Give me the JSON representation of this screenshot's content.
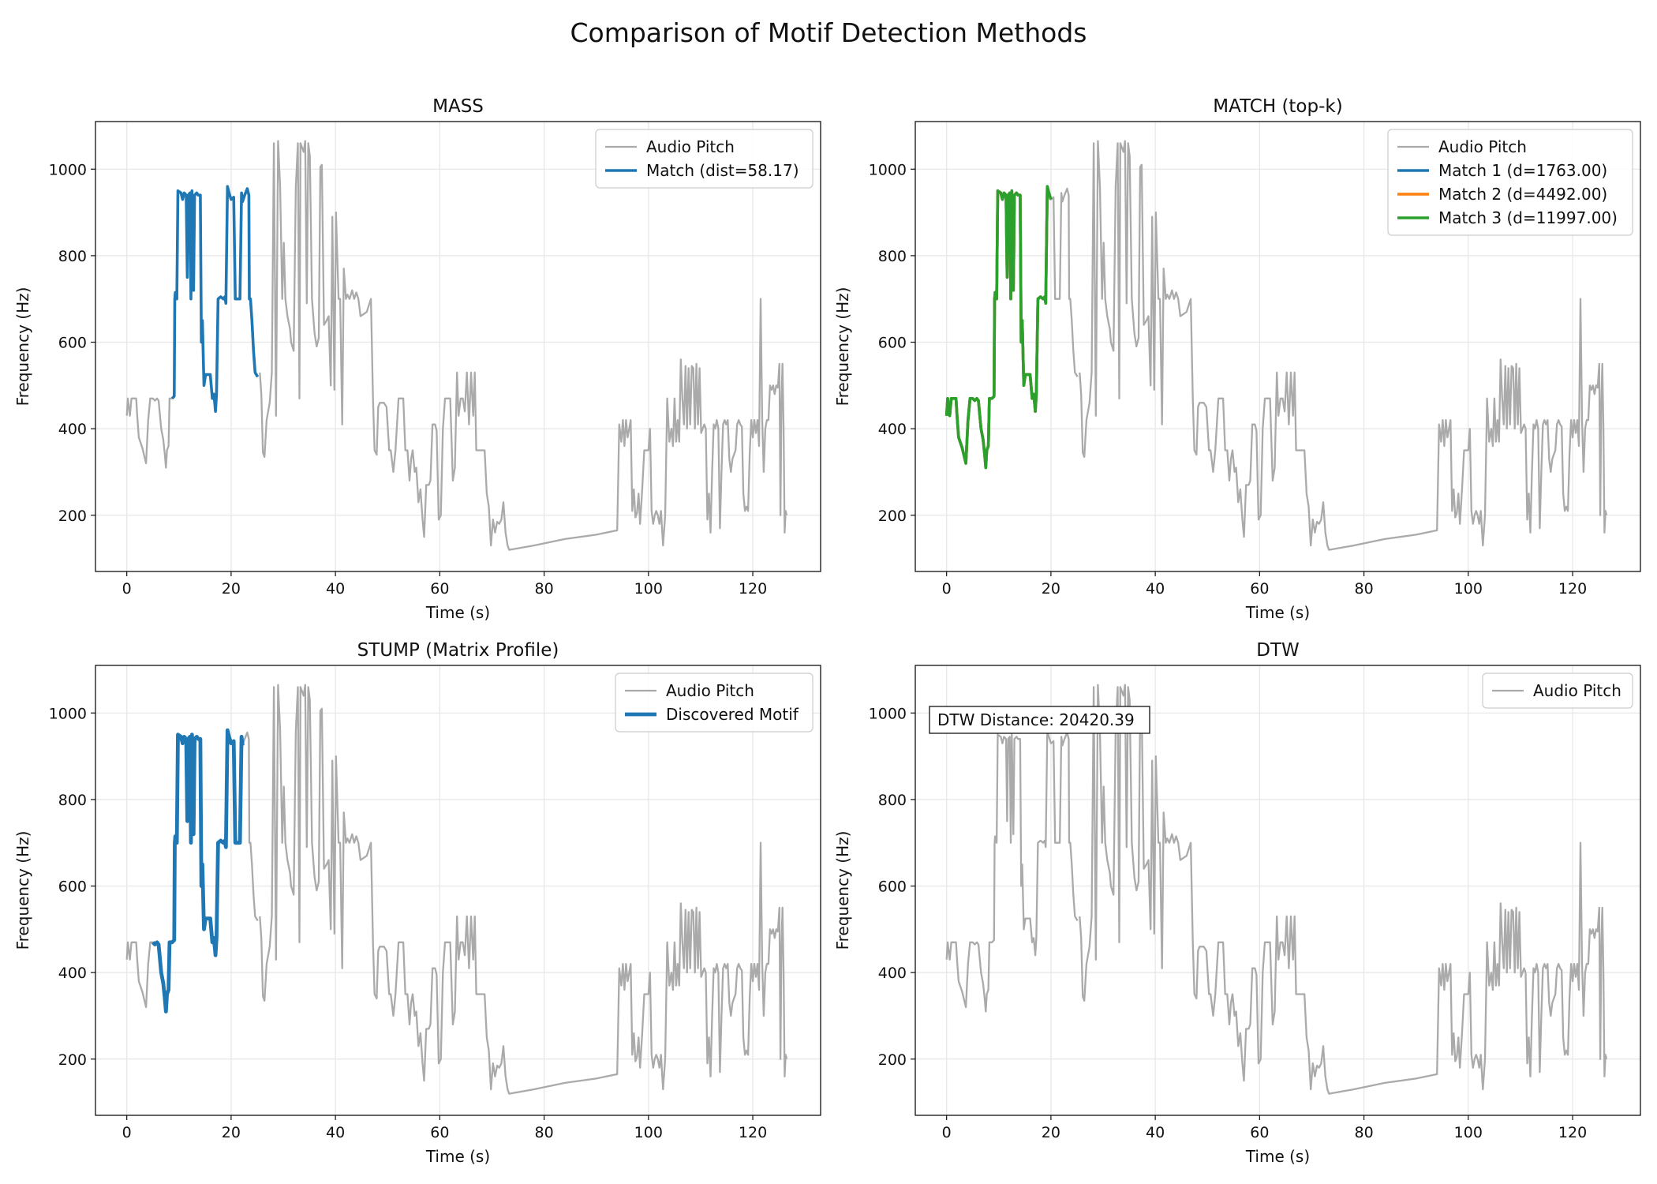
{
  "figure": {
    "title": "Comparison of Motif Detection Methods"
  },
  "colors": {
    "base": "#aaaaaa",
    "blue": "#1f77b4",
    "orange": "#ff7f0e",
    "green": "#2ca02c",
    "grid": "#e6e6e6"
  },
  "pitch_segments": [
    [
      [
        0.0,
        430
      ],
      [
        0.2,
        470
      ],
      [
        0.6,
        430
      ],
      [
        0.9,
        470
      ],
      [
        1.4,
        470
      ],
      [
        1.8,
        470
      ],
      [
        2.0,
        430
      ],
      [
        2.3,
        380
      ],
      [
        3.0,
        355
      ],
      [
        3.7,
        320
      ],
      [
        4.1,
        420
      ],
      [
        4.5,
        470
      ],
      [
        5.0,
        470
      ],
      [
        5.4,
        465
      ],
      [
        5.8,
        470
      ],
      [
        6.1,
        465
      ],
      [
        6.6,
        400
      ],
      [
        7.0,
        375
      ],
      [
        7.3,
        340
      ],
      [
        7.5,
        310
      ],
      [
        7.7,
        350
      ],
      [
        8.0,
        360
      ],
      [
        8.2,
        470
      ],
      [
        8.7,
        470
      ],
      [
        9.1,
        475
      ],
      [
        9.2,
        700
      ],
      [
        9.3,
        715
      ],
      [
        9.6,
        700
      ],
      [
        9.8,
        950
      ],
      [
        10.4,
        945
      ],
      [
        10.7,
        930
      ],
      [
        11.0,
        945
      ],
      [
        11.4,
        940
      ],
      [
        11.6,
        750
      ],
      [
        11.8,
        940
      ],
      [
        12.1,
        945
      ],
      [
        12.3,
        700
      ],
      [
        12.5,
        950
      ],
      [
        12.8,
        720
      ],
      [
        13.0,
        940
      ],
      [
        13.4,
        945
      ],
      [
        13.7,
        940
      ],
      [
        14.1,
        940
      ],
      [
        14.3,
        600
      ],
      [
        14.5,
        650
      ],
      [
        14.8,
        500
      ],
      [
        15.1,
        525
      ],
      [
        15.5,
        525
      ],
      [
        16.0,
        525
      ],
      [
        16.4,
        470
      ],
      [
        16.7,
        480
      ],
      [
        17.0,
        440
      ],
      [
        17.2,
        480
      ],
      [
        17.5,
        700
      ],
      [
        18.0,
        705
      ],
      [
        18.5,
        700
      ],
      [
        18.8,
        705
      ],
      [
        19.0,
        690
      ],
      [
        19.3,
        960
      ],
      [
        19.6,
        945
      ],
      [
        20.0,
        930
      ],
      [
        20.5,
        935
      ],
      [
        20.8,
        700
      ],
      [
        21.0,
        700
      ],
      [
        21.3,
        700
      ],
      [
        21.7,
        700
      ],
      [
        22.0,
        945
      ],
      [
        22.2,
        925
      ],
      [
        22.6,
        940
      ],
      [
        23.1,
        955
      ],
      [
        23.4,
        940
      ],
      [
        23.5,
        700
      ],
      [
        23.7,
        700
      ],
      [
        24.0,
        650
      ],
      [
        24.3,
        580
      ],
      [
        24.6,
        530
      ],
      [
        25.1,
        520
      ]
    ],
    [
      [
        25.5,
        530
      ],
      [
        25.8,
        480
      ],
      [
        26.1,
        345
      ],
      [
        26.4,
        335
      ],
      [
        26.8,
        420
      ],
      [
        27.4,
        460
      ],
      [
        27.8,
        530
      ],
      [
        28.2,
        1060
      ],
      [
        28.6,
        430
      ],
      [
        29.0,
        1065
      ],
      [
        29.4,
        960
      ],
      [
        29.8,
        700
      ],
      [
        30.1,
        830
      ],
      [
        30.4,
        700
      ],
      [
        30.8,
        660
      ],
      [
        31.3,
        630
      ],
      [
        31.5,
        600
      ],
      [
        32.0,
        580
      ],
      [
        32.4,
        960
      ],
      [
        32.8,
        1060
      ],
      [
        33.1,
        470
      ],
      [
        33.3,
        1060
      ],
      [
        33.9,
        1040
      ],
      [
        34.2,
        1065
      ],
      [
        34.5,
        690
      ],
      [
        34.8,
        1060
      ],
      [
        35.1,
        1030
      ],
      [
        35.5,
        700
      ],
      [
        36.0,
        620
      ],
      [
        36.4,
        590
      ],
      [
        36.8,
        610
      ],
      [
        37.1,
        1005
      ],
      [
        37.4,
        1010
      ],
      [
        37.8,
        640
      ],
      [
        38.3,
        650
      ],
      [
        38.7,
        660
      ],
      [
        39.1,
        500
      ],
      [
        39.4,
        890
      ],
      [
        39.8,
        490
      ],
      [
        40.1,
        900
      ],
      [
        40.6,
        700
      ],
      [
        40.9,
        700
      ],
      [
        41.3,
        410
      ],
      [
        41.6,
        770
      ],
      [
        42.0,
        700
      ],
      [
        42.3,
        710
      ],
      [
        42.7,
        700
      ],
      [
        43.2,
        720
      ],
      [
        43.6,
        700
      ],
      [
        44.0,
        715
      ],
      [
        44.4,
        700
      ],
      [
        44.8,
        660
      ],
      [
        45.4,
        665
      ],
      [
        46.0,
        670
      ],
      [
        46.8,
        700
      ],
      [
        47.2,
        470
      ],
      [
        47.5,
        350
      ],
      [
        47.9,
        340
      ],
      [
        48.2,
        450
      ],
      [
        48.5,
        460
      ],
      [
        49.3,
        460
      ],
      [
        49.8,
        450
      ],
      [
        50.3,
        350
      ],
      [
        50.6,
        350
      ],
      [
        51.1,
        300
      ],
      [
        51.5,
        350
      ],
      [
        52.1,
        470
      ],
      [
        52.6,
        470
      ],
      [
        53.0,
        470
      ],
      [
        53.4,
        350
      ],
      [
        53.8,
        350
      ],
      [
        54.2,
        280
      ],
      [
        54.5,
        330
      ],
      [
        54.8,
        350
      ],
      [
        55.2,
        300
      ],
      [
        55.5,
        310
      ],
      [
        55.9,
        230
      ],
      [
        56.3,
        260
      ],
      [
        56.7,
        190
      ],
      [
        57.0,
        150
      ],
      [
        57.4,
        270
      ],
      [
        57.9,
        270
      ],
      [
        58.2,
        280
      ],
      [
        58.6,
        410
      ],
      [
        59.1,
        410
      ],
      [
        59.4,
        395
      ],
      [
        59.8,
        190
      ],
      [
        60.2,
        200
      ],
      [
        60.6,
        400
      ],
      [
        61.0,
        470
      ],
      [
        61.5,
        470
      ],
      [
        62.0,
        470
      ],
      [
        62.5,
        280
      ],
      [
        62.9,
        310
      ],
      [
        63.3,
        530
      ],
      [
        63.6,
        430
      ],
      [
        64.0,
        470
      ],
      [
        64.4,
        470
      ],
      [
        64.8,
        440
      ],
      [
        65.2,
        530
      ],
      [
        65.6,
        410
      ],
      [
        66.0,
        530
      ],
      [
        66.4,
        430
      ],
      [
        66.7,
        530
      ],
      [
        67.0,
        350
      ],
      [
        67.4,
        350
      ],
      [
        68.0,
        350
      ],
      [
        68.6,
        350
      ],
      [
        69.0,
        250
      ],
      [
        69.4,
        220
      ],
      [
        69.8,
        130
      ],
      [
        70.2,
        190
      ],
      [
        70.6,
        160
      ],
      [
        71.0,
        185
      ],
      [
        71.4,
        180
      ],
      [
        71.8,
        190
      ],
      [
        72.2,
        230
      ],
      [
        72.6,
        160
      ],
      [
        73.0,
        130
      ],
      [
        73.3,
        120
      ],
      [
        78.0,
        130
      ],
      [
        84.0,
        145
      ],
      [
        90.0,
        155
      ],
      [
        94.0,
        165
      ],
      [
        94.4,
        410
      ],
      [
        94.8,
        370
      ],
      [
        95.1,
        420
      ],
      [
        95.4,
        360
      ],
      [
        95.7,
        420
      ],
      [
        96.0,
        380
      ],
      [
        96.3,
        400
      ],
      [
        96.6,
        420
      ],
      [
        96.9,
        210
      ],
      [
        97.2,
        260
      ],
      [
        97.5,
        195
      ],
      [
        97.8,
        205
      ],
      [
        98.1,
        250
      ],
      [
        98.4,
        180
      ],
      [
        98.8,
        260
      ],
      [
        99.2,
        350
      ],
      [
        99.6,
        350
      ],
      [
        100.0,
        350
      ],
      [
        100.3,
        400
      ],
      [
        100.6,
        210
      ],
      [
        100.9,
        180
      ],
      [
        101.2,
        200
      ],
      [
        101.5,
        210
      ],
      [
        101.8,
        200
      ],
      [
        102.1,
        180
      ],
      [
        102.4,
        210
      ],
      [
        102.8,
        130
      ],
      [
        103.2,
        200
      ],
      [
        103.6,
        470
      ],
      [
        104.0,
        370
      ],
      [
        104.4,
        400
      ],
      [
        104.7,
        360
      ],
      [
        105.0,
        470
      ],
      [
        105.3,
        370
      ],
      [
        105.6,
        420
      ],
      [
        105.9,
        370
      ],
      [
        106.2,
        560
      ],
      [
        106.5,
        470
      ],
      [
        106.8,
        410
      ],
      [
        107.1,
        545
      ],
      [
        107.4,
        400
      ],
      [
        107.7,
        540
      ],
      [
        108.0,
        410
      ],
      [
        108.3,
        545
      ],
      [
        108.6,
        540
      ],
      [
        108.9,
        400
      ],
      [
        109.2,
        550
      ],
      [
        109.5,
        410
      ],
      [
        109.8,
        540
      ],
      [
        110.1,
        390
      ],
      [
        110.4,
        400
      ],
      [
        110.7,
        410
      ],
      [
        111.0,
        400
      ],
      [
        111.3,
        190
      ],
      [
        111.6,
        250
      ],
      [
        111.9,
        160
      ],
      [
        112.2,
        300
      ],
      [
        112.5,
        410
      ],
      [
        112.8,
        400
      ],
      [
        113.1,
        420
      ],
      [
        113.4,
        400
      ],
      [
        113.7,
        170
      ],
      [
        114.0,
        300
      ],
      [
        114.3,
        410
      ],
      [
        114.6,
        420
      ],
      [
        114.9,
        410
      ],
      [
        115.2,
        420
      ],
      [
        115.5,
        330
      ],
      [
        115.8,
        300
      ],
      [
        116.1,
        330
      ],
      [
        116.4,
        340
      ],
      [
        116.7,
        350
      ],
      [
        117.0,
        410
      ],
      [
        117.3,
        420
      ],
      [
        117.6,
        410
      ],
      [
        117.9,
        405
      ],
      [
        118.2,
        250
      ],
      [
        118.5,
        210
      ],
      [
        118.8,
        220
      ],
      [
        119.1,
        210
      ],
      [
        119.4,
        340
      ],
      [
        119.7,
        420
      ],
      [
        120.0,
        380
      ],
      [
        120.3,
        420
      ],
      [
        120.6,
        390
      ],
      [
        120.9,
        420
      ],
      [
        121.2,
        360
      ],
      [
        121.5,
        700
      ],
      [
        121.8,
        420
      ],
      [
        122.1,
        300
      ],
      [
        122.4,
        400
      ],
      [
        122.7,
        420
      ],
      [
        123.0,
        420
      ],
      [
        123.3,
        500
      ],
      [
        123.6,
        490
      ],
      [
        123.9,
        500
      ],
      [
        124.2,
        480
      ],
      [
        124.5,
        500
      ],
      [
        124.8,
        495
      ],
      [
        125.1,
        550
      ],
      [
        125.3,
        200
      ],
      [
        125.5,
        460
      ],
      [
        125.7,
        550
      ],
      [
        125.9,
        400
      ],
      [
        126.1,
        160
      ],
      [
        126.3,
        210
      ],
      [
        126.5,
        200
      ]
    ]
  ],
  "chart_data": [
    {
      "type": "line",
      "title": "MASS",
      "xlabel": "Time (s)",
      "ylabel": "Frequency (Hz)",
      "xlim": [
        -6,
        133
      ],
      "ylim": [
        70,
        1110
      ],
      "xticks": [
        0,
        20,
        40,
        60,
        80,
        100,
        120
      ],
      "yticks": [
        200,
        400,
        600,
        800,
        1000
      ],
      "grid": true,
      "legend_position": "top-right",
      "series": [
        {
          "name": "Audio Pitch",
          "source": "full",
          "color": "#aaaaaa",
          "width": 2.3
        },
        {
          "name": "Match (dist=58.17)",
          "source": "range",
          "range": [
            8.3,
            25.1
          ],
          "color": "#1f77b4",
          "width": 3.6
        }
      ]
    },
    {
      "type": "line",
      "title": "MATCH (top-k)",
      "xlabel": "Time (s)",
      "ylabel": "Frequency (Hz)",
      "xlim": [
        -6,
        133
      ],
      "ylim": [
        70,
        1110
      ],
      "xticks": [
        0,
        20,
        40,
        60,
        80,
        100,
        120
      ],
      "yticks": [
        200,
        400,
        600,
        800,
        1000
      ],
      "grid": true,
      "legend_position": "top-right",
      "series": [
        {
          "name": "Audio Pitch",
          "source": "full",
          "color": "#aaaaaa",
          "width": 2.3
        },
        {
          "name": "Match 1 (d=1763.00)",
          "source": "range",
          "range": [
            0,
            20
          ],
          "color": "#1f77b4",
          "width": 3.6
        },
        {
          "name": "Match 2 (d=4492.00)",
          "source": "range",
          "range": [
            0,
            20
          ],
          "color": "#ff7f0e",
          "width": 3.6
        },
        {
          "name": "Match 3 (d=11997.00)",
          "source": "range",
          "range": [
            0,
            20
          ],
          "color": "#2ca02c",
          "width": 3.6
        }
      ]
    },
    {
      "type": "line",
      "title": "STUMP (Matrix Profile)",
      "xlabel": "Time (s)",
      "ylabel": "Frequency (Hz)",
      "xlim": [
        -6,
        133
      ],
      "ylim": [
        70,
        1110
      ],
      "xticks": [
        0,
        20,
        40,
        60,
        80,
        100,
        120
      ],
      "yticks": [
        200,
        400,
        600,
        800,
        1000
      ],
      "grid": true,
      "legend_position": "top-right",
      "series": [
        {
          "name": "Audio Pitch",
          "source": "full",
          "color": "#aaaaaa",
          "width": 2.3
        },
        {
          "name": "Discovered Motif",
          "source": "range",
          "range": [
            4.9,
            22.2
          ],
          "color": "#1f77b4",
          "width": 4.8
        }
      ]
    },
    {
      "type": "line",
      "title": "DTW",
      "xlabel": "Time (s)",
      "ylabel": "Frequency (Hz)",
      "xlim": [
        -6,
        133
      ],
      "ylim": [
        70,
        1110
      ],
      "xticks": [
        0,
        20,
        40,
        60,
        80,
        100,
        120
      ],
      "yticks": [
        200,
        400,
        600,
        800,
        1000
      ],
      "grid": true,
      "legend_position": "top-right",
      "annotation": "DTW Distance: 20420.39",
      "series": [
        {
          "name": "Audio Pitch",
          "source": "full",
          "color": "#aaaaaa",
          "width": 2.3
        }
      ]
    }
  ]
}
